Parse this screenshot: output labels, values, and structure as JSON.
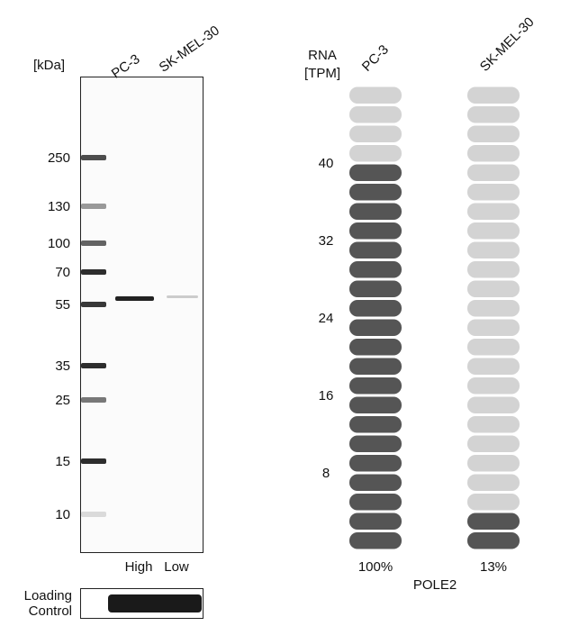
{
  "western_blot": {
    "unit_label": "[kDa]",
    "lanes": [
      "PC-3",
      "SK-MEL-30"
    ],
    "markers": [
      250,
      130,
      100,
      70,
      55,
      35,
      25,
      15,
      10
    ],
    "lane_levels": [
      "High",
      "Low"
    ],
    "loading_control": "Loading Control"
  },
  "rna": {
    "axis_label": [
      "RNA",
      "[TPM]"
    ],
    "ylim": [
      0,
      48
    ],
    "yticks": [
      8,
      16,
      24,
      32,
      40
    ],
    "segments": 24,
    "samples": [
      {
        "name": "PC-3",
        "filled": 20,
        "percent": "100%"
      },
      {
        "name": "SK-MEL-30",
        "filled": 2,
        "percent": "13%"
      }
    ],
    "gene": "POLE2"
  }
}
